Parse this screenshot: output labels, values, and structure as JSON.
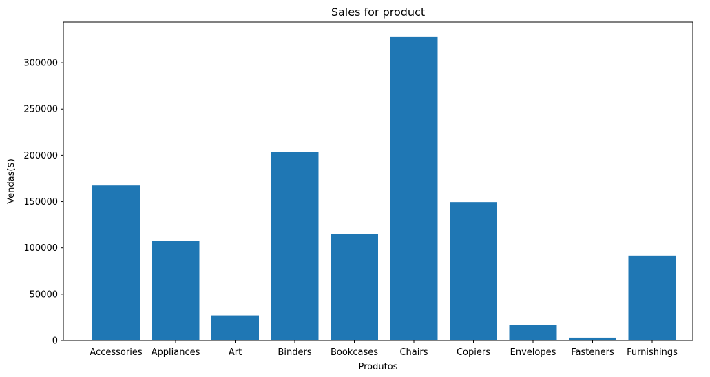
{
  "chart_data": {
    "type": "bar",
    "title": "Sales for product",
    "xlabel": "Produtos",
    "ylabel": "Vendas($)",
    "categories": [
      "Accessories",
      "Appliances",
      "Art",
      "Binders",
      "Bookcases",
      "Chairs",
      "Copiers",
      "Envelopes",
      "Fasteners",
      "Furnishings"
    ],
    "values": [
      167380,
      107532,
      27119,
      203413,
      114880,
      328449,
      149528,
      16476,
      3024,
      91705
    ],
    "ylim": [
      0,
      344000
    ],
    "yticks": [
      0,
      50000,
      100000,
      150000,
      200000,
      250000,
      300000
    ],
    "ytick_labels": [
      "0",
      "50000",
      "100000",
      "150000",
      "200000",
      "250000",
      "300000"
    ],
    "grid": false,
    "bar_color": "#1f77b4"
  }
}
